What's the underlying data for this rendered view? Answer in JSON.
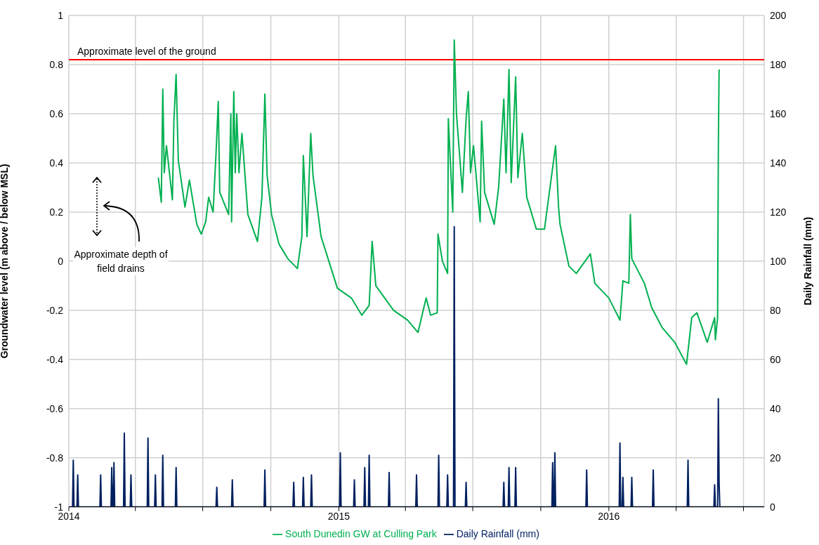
{
  "chart_data": {
    "type": "line",
    "xlim": [
      "2014-01-01",
      "2016-07-29"
    ],
    "xticks": [
      {
        "value": "2014-01-01",
        "label": "2014"
      },
      {
        "value": "2014-04-01",
        "label": null
      },
      {
        "value": "2014-07-01",
        "label": null
      },
      {
        "value": "2014-10-01",
        "label": null
      },
      {
        "value": "2015-01-01",
        "label": "2015"
      },
      {
        "value": "2015-04-01",
        "label": null
      },
      {
        "value": "2015-07-01",
        "label": null
      },
      {
        "value": "2015-10-01",
        "label": null
      },
      {
        "value": "2016-01-01",
        "label": "2016"
      },
      {
        "value": "2016-04-01",
        "label": null
      },
      {
        "value": "2016-07-01",
        "label": null
      }
    ],
    "ylim": [
      -1,
      1
    ],
    "yticks": [
      -1,
      -0.8,
      -0.6,
      -0.4,
      -0.2,
      0,
      0.2,
      0.4,
      0.6,
      0.8,
      1
    ],
    "y2lim": [
      0,
      200
    ],
    "y2ticks": [
      0,
      20,
      40,
      60,
      80,
      100,
      120,
      140,
      160,
      180,
      200
    ],
    "ylabel": "Groundwater level (m above / below MSL)",
    "y2label": "Daily Rainfall (mm)",
    "grid": true,
    "legend": "bottom",
    "marker": "none",
    "line_style": "solid",
    "annotations": [
      "Approximate depth of field drains"
    ],
    "ref_lines": [
      {
        "axis": "y",
        "value": 0.82,
        "label": "Approximate level of the ground",
        "color": "#ff0000"
      }
    ],
    "series": [
      {
        "name": "South Dunedin GW at Culling Park",
        "color": "#00b050",
        "axis": "y",
        "x": [
          "2014-05-02",
          "2014-05-06",
          "2014-05-08",
          "2014-05-10",
          "2014-05-13",
          "2014-05-21",
          "2014-05-23",
          "2014-05-26",
          "2014-05-29",
          "2014-06-07",
          "2014-06-13",
          "2014-06-23",
          "2014-06-29",
          "2014-07-05",
          "2014-07-09",
          "2014-07-15",
          "2014-07-19",
          "2014-07-22",
          "2014-07-24",
          "2014-08-05",
          "2014-08-08",
          "2014-08-09",
          "2014-08-12",
          "2014-08-14",
          "2014-08-16",
          "2014-08-19",
          "2014-08-23",
          "2014-08-31",
          "2014-09-13",
          "2014-09-19",
          "2014-09-23",
          "2014-09-26",
          "2014-10-02",
          "2014-10-12",
          "2014-10-24",
          "2014-11-06",
          "2014-11-12",
          "2014-11-14",
          "2014-11-19",
          "2014-11-24",
          "2014-11-27",
          "2014-12-08",
          "2014-12-30",
          "2015-01-18",
          "2015-02-01",
          "2015-02-11",
          "2015-02-15",
          "2015-02-20",
          "2015-03-16",
          "2015-04-04",
          "2015-04-18",
          "2015-04-29",
          "2015-05-05",
          "2015-05-14",
          "2015-05-15",
          "2015-05-21",
          "2015-05-28",
          "2015-05-29",
          "2015-06-04",
          "2015-06-06",
          "2015-06-09",
          "2015-06-11",
          "2015-06-17",
          "2015-06-22",
          "2015-06-25",
          "2015-06-28",
          "2015-07-02",
          "2015-07-11",
          "2015-07-13",
          "2015-07-17",
          "2015-07-30",
          "2015-08-05",
          "2015-08-12",
          "2015-08-15",
          "2015-08-19",
          "2015-08-22",
          "2015-08-28",
          "2015-08-31",
          "2015-09-06",
          "2015-09-12",
          "2015-09-25",
          "2015-10-06",
          "2015-10-09",
          "2015-10-21",
          "2015-10-25",
          "2015-10-27",
          "2015-11-08",
          "2015-11-18",
          "2015-12-07",
          "2015-12-13",
          "2016-01-01",
          "2016-01-16",
          "2016-01-20",
          "2016-01-28",
          "2016-01-30",
          "2016-02-01",
          "2016-02-18",
          "2016-02-28",
          "2016-03-13",
          "2016-03-30",
          "2016-04-15",
          "2016-04-22",
          "2016-04-29",
          "2016-05-13",
          "2016-05-23",
          "2016-05-24",
          "2016-05-27",
          "2016-05-28",
          "2016-05-29"
        ],
        "values": [
          0.34,
          0.24,
          0.7,
          0.36,
          0.47,
          0.25,
          0.57,
          0.76,
          0.41,
          0.22,
          0.33,
          0.15,
          0.11,
          0.16,
          0.26,
          0.2,
          0.44,
          0.65,
          0.28,
          0.19,
          0.6,
          0.16,
          0.69,
          0.36,
          0.6,
          0.36,
          0.52,
          0.19,
          0.08,
          0.26,
          0.68,
          0.35,
          0.19,
          0.07,
          0.01,
          -0.03,
          0.1,
          0.43,
          0.1,
          0.52,
          0.35,
          0.1,
          -0.11,
          -0.15,
          -0.22,
          -0.18,
          0.08,
          -0.1,
          -0.2,
          -0.24,
          -0.29,
          -0.15,
          -0.22,
          -0.21,
          0.11,
          0,
          -0.05,
          0.58,
          0.2,
          0.9,
          0.6,
          0.52,
          0.28,
          0.58,
          0.69,
          0.36,
          0.47,
          0.16,
          0.57,
          0.28,
          0.15,
          0.3,
          0.66,
          0.36,
          0.78,
          0.32,
          0.75,
          0.34,
          0.52,
          0.26,
          0.13,
          0.13,
          0.2,
          0.47,
          0.22,
          0.15,
          -0.02,
          -0.05,
          0.03,
          -0.09,
          -0.15,
          -0.24,
          -0.08,
          -0.09,
          0.19,
          0.01,
          -0.09,
          -0.19,
          -0.27,
          -0.33,
          -0.42,
          -0.23,
          -0.21,
          -0.33,
          -0.23,
          -0.32,
          -0.23,
          0.46,
          0.78
        ]
      },
      {
        "name": "Daily Rainfall (mm)",
        "color": "#002060",
        "axis": "y2",
        "x": [
          "2014-01-01",
          "2014-01-06",
          "2014-01-07",
          "2014-01-08",
          "2014-01-12",
          "2014-01-13",
          "2014-01-14",
          "2014-02-12",
          "2014-02-13",
          "2014-02-14",
          "2014-02-27",
          "2014-02-28",
          "2014-03-01",
          "2014-03-02",
          "2014-03-03",
          "2014-03-04",
          "2014-03-16",
          "2014-03-17",
          "2014-03-18",
          "2014-03-25",
          "2014-03-26",
          "2014-03-27",
          "2014-04-17",
          "2014-04-18",
          "2014-04-19",
          "2014-04-27",
          "2014-04-28",
          "2014-04-29",
          "2014-05-07",
          "2014-05-08",
          "2014-05-09",
          "2014-05-25",
          "2014-05-26",
          "2014-05-27",
          "2014-07-19",
          "2014-07-20",
          "2014-07-21",
          "2014-08-09",
          "2014-08-10",
          "2014-08-11",
          "2014-09-22",
          "2014-09-23",
          "2014-09-24",
          "2014-10-31",
          "2014-11-01",
          "2014-11-02",
          "2014-11-13",
          "2014-11-14",
          "2014-11-15",
          "2014-11-24",
          "2014-11-25",
          "2014-11-26",
          "2015-01-02",
          "2015-01-03",
          "2015-01-04",
          "2015-01-21",
          "2015-01-22",
          "2015-01-23",
          "2015-02-04",
          "2015-02-05",
          "2015-02-06",
          "2015-02-10",
          "2015-02-11",
          "2015-02-12",
          "2015-03-09",
          "2015-03-10",
          "2015-03-11",
          "2015-04-15",
          "2015-04-16",
          "2015-04-17",
          "2015-05-15",
          "2015-05-16",
          "2015-05-17",
          "2015-05-27",
          "2015-05-28",
          "2015-05-29",
          "2015-06-05",
          "2015-06-06",
          "2015-06-07",
          "2015-06-21",
          "2015-06-22",
          "2015-06-23",
          "2015-08-11",
          "2015-08-12",
          "2015-08-13",
          "2015-08-18",
          "2015-08-19",
          "2015-08-20",
          "2015-08-27",
          "2015-08-28",
          "2015-08-29",
          "2015-10-16",
          "2015-10-17",
          "2015-10-18",
          "2015-10-19",
          "2015-10-20",
          "2015-10-21",
          "2015-12-01",
          "2015-12-02",
          "2015-12-03",
          "2016-01-15",
          "2016-01-16",
          "2016-01-17",
          "2016-01-19",
          "2016-01-20",
          "2016-01-21",
          "2016-01-31",
          "2016-02-01",
          "2016-02-02",
          "2016-02-29",
          "2016-03-01",
          "2016-03-02",
          "2016-04-16",
          "2016-04-17",
          "2016-04-18",
          "2016-05-22",
          "2016-05-23",
          "2016-05-24",
          "2016-05-27",
          "2016-05-28",
          "2016-05-29",
          "2016-05-30",
          "2016-07-29"
        ],
        "values": [
          0,
          0,
          19,
          0,
          0,
          13,
          0,
          0,
          13,
          0,
          0,
          16,
          0,
          0,
          18,
          0,
          0,
          30,
          0,
          0,
          13,
          0,
          0,
          28,
          0,
          0,
          13,
          0,
          0,
          21,
          0,
          0,
          16,
          0,
          0,
          8,
          0,
          0,
          11,
          0,
          0,
          15,
          0,
          0,
          10,
          0,
          0,
          12,
          0,
          0,
          13,
          0,
          0,
          22,
          0,
          0,
          11,
          0,
          0,
          16,
          0,
          0,
          21,
          0,
          0,
          14,
          0,
          0,
          13,
          0,
          0,
          21,
          0,
          0,
          13,
          0,
          0,
          114,
          0,
          0,
          10,
          0,
          0,
          10,
          0,
          0,
          16,
          0,
          0,
          16,
          0,
          0,
          18,
          0,
          0,
          22,
          0,
          0,
          15,
          0,
          0,
          26,
          0,
          0,
          12,
          0,
          0,
          12,
          0,
          0,
          15,
          0,
          0,
          19,
          0,
          0,
          9,
          0,
          0,
          44,
          10,
          0,
          0
        ]
      }
    ]
  }
}
